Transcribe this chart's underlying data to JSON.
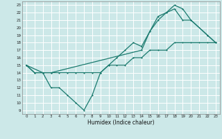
{
  "title": "",
  "xlabel": "Humidex (Indice chaleur)",
  "bg_color": "#cce8e8",
  "grid_color": "#ffffff",
  "line_color": "#1a7a6e",
  "xlim": [
    -0.5,
    23.5
  ],
  "ylim": [
    8.5,
    23.5
  ],
  "xticks": [
    0,
    1,
    2,
    3,
    4,
    5,
    6,
    7,
    8,
    9,
    10,
    11,
    12,
    13,
    14,
    15,
    16,
    17,
    18,
    19,
    20,
    21,
    22,
    23
  ],
  "yticks": [
    9,
    10,
    11,
    12,
    13,
    14,
    15,
    16,
    17,
    18,
    19,
    20,
    21,
    22,
    23
  ],
  "line1_x": [
    0,
    1,
    2,
    3,
    4,
    5,
    6,
    7,
    8,
    9,
    10,
    11,
    12,
    13,
    14,
    15,
    16,
    17,
    18,
    19,
    20,
    21,
    22,
    23
  ],
  "line1_y": [
    15,
    14,
    14,
    14,
    14,
    14,
    14,
    14,
    14,
    14,
    15,
    15,
    15,
    16,
    16,
    17,
    17,
    17,
    18,
    18,
    18,
    18,
    18,
    18
  ],
  "line2_x": [
    0,
    1,
    2,
    3,
    4,
    5,
    6,
    7,
    8,
    9,
    10,
    11,
    12,
    13,
    14,
    15,
    16,
    17,
    18,
    19,
    20,
    22,
    23
  ],
  "line2_y": [
    15,
    14,
    14,
    12,
    12,
    11,
    10,
    9,
    11,
    14,
    15,
    16,
    17,
    18,
    17.5,
    19.5,
    21,
    22,
    22.5,
    21,
    21,
    19,
    18
  ],
  "line3_x": [
    0,
    2,
    3,
    14,
    15,
    16,
    17,
    18,
    19,
    20,
    22,
    23
  ],
  "line3_y": [
    15,
    14,
    14,
    17,
    19.5,
    21.5,
    22,
    23,
    22.5,
    21,
    19,
    18
  ]
}
